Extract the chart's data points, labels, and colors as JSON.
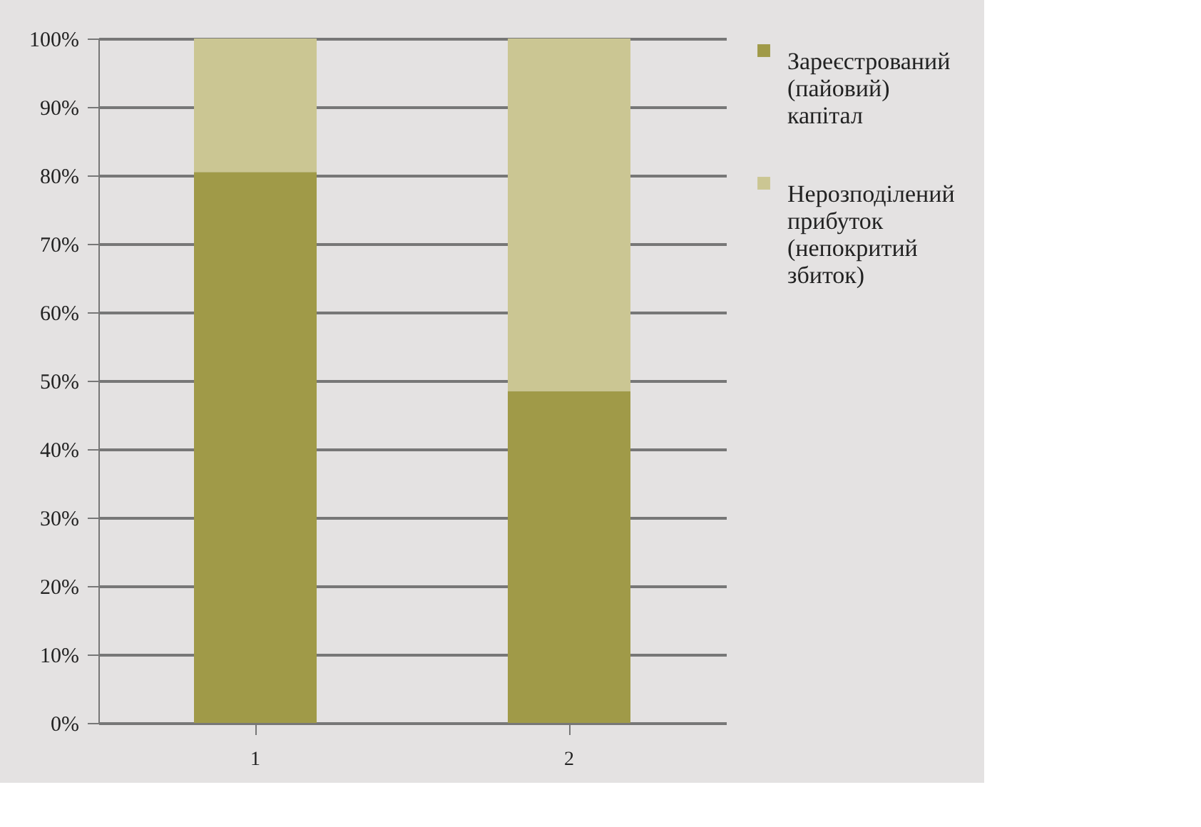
{
  "chart_data": {
    "type": "bar",
    "stacked": true,
    "categories": [
      "1",
      "2"
    ],
    "series": [
      {
        "name": "Зареєстрований (пайовий) капітал",
        "color": "#a09a48",
        "values": [
          80.5,
          48.5
        ]
      },
      {
        "name": "Нерозподілений прибуток (непокритий збиток)",
        "color": "#cbc693",
        "values": [
          19.5,
          51.5
        ]
      }
    ],
    "ylim": [
      0,
      100
    ],
    "yticks": [
      {
        "value": 0,
        "label": "0%"
      },
      {
        "value": 10,
        "label": "10%"
      },
      {
        "value": 20,
        "label": "20%"
      },
      {
        "value": 30,
        "label": "30%"
      },
      {
        "value": 40,
        "label": "40%"
      },
      {
        "value": 50,
        "label": "50%"
      },
      {
        "value": 60,
        "label": "60%"
      },
      {
        "value": 70,
        "label": "70%"
      },
      {
        "value": 80,
        "label": "80%"
      },
      {
        "value": 90,
        "label": "90%"
      },
      {
        "value": 100,
        "label": "100%"
      }
    ],
    "grid": "y",
    "legend": "right"
  }
}
